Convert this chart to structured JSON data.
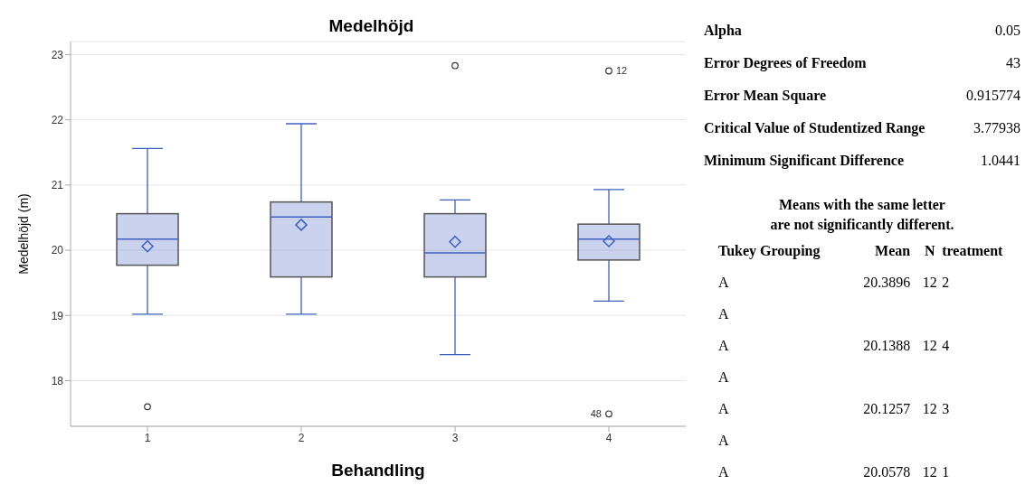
{
  "chart_data": [
    {
      "type": "box",
      "title": "Medelhöjd",
      "xlabel": "Behandling",
      "ylabel": "Medelhöjd (m)",
      "categories": [
        "1",
        "2",
        "3",
        "4"
      ],
      "series": [
        {
          "color": "#3f5fbf",
          "boxes": [
            {
              "low": 19.02,
              "q1": 19.77,
              "median": 20.17,
              "q3": 20.56,
              "high": 21.56,
              "mean": 20.06,
              "outliers": [
                17.6
              ]
            },
            {
              "low": 19.02,
              "q1": 19.59,
              "median": 20.51,
              "q3": 20.74,
              "high": 21.94,
              "mean": 20.39
            },
            {
              "low": 18.4,
              "q1": 19.59,
              "median": 19.96,
              "q3": 20.56,
              "high": 20.77,
              "mean": 20.13,
              "outliers": [
                22.83
              ]
            },
            {
              "low": 19.22,
              "q1": 19.85,
              "median": 20.17,
              "q3": 20.4,
              "high": 20.93,
              "mean": 20.14,
              "outliers": [
                22.75,
                17.49
              ]
            }
          ]
        }
      ],
      "marker": "diamond",
      "ylim": [
        17.3,
        23.2
      ],
      "yticks": [
        18,
        19,
        20,
        21,
        22,
        23
      ],
      "grid": "y",
      "annotations": [
        "12",
        "48"
      ]
    },
    {
      "type": "other",
      "annotations": [
        "Alpha",
        "0.05",
        "Error Degrees of Freedom",
        "43",
        "Error Mean Square",
        "0.915774",
        "Critical Value of Studentized Range",
        "3.77938",
        "Minimum Significant Difference",
        "1.0441",
        "Means with the same letter\nare not significantly different.",
        "Tukey Grouping",
        "Mean",
        "N",
        "treatment",
        "A",
        "20.3896",
        "12",
        "2",
        "A",
        null,
        null,
        null,
        "A",
        "20.1388",
        "12",
        "4",
        "A",
        null,
        null,
        null,
        "A",
        "20.1257",
        "12",
        "3",
        "A",
        null,
        null,
        null,
        "A",
        "20.0578",
        "12",
        "1"
      ]
    }
  ]
}
